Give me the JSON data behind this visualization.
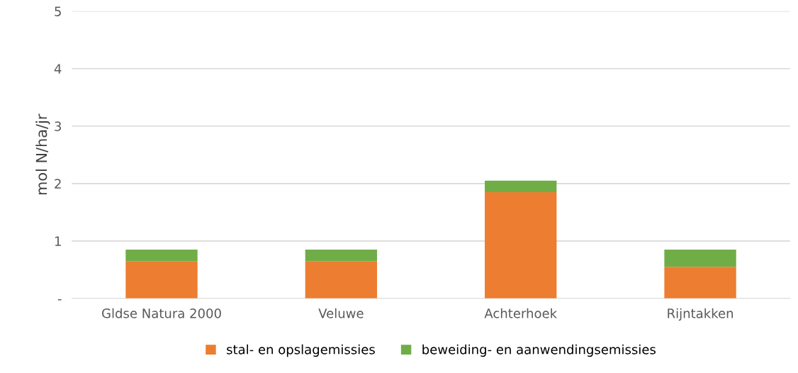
{
  "chart_data": {
    "type": "bar",
    "stacked": true,
    "ylabel": "mol N/ha/jr",
    "categories": [
      "Gldse Natura 2000",
      "Veluwe",
      "Achterhoek",
      "Rijntakken"
    ],
    "series": [
      {
        "name": "stal- en opslagemissies",
        "color": "#ed7d31",
        "values": [
          0.65,
          0.65,
          1.85,
          0.55
        ]
      },
      {
        "name": "beweiding- en aanwendingsemissies",
        "color": "#70ad47",
        "values": [
          0.2,
          0.2,
          0.2,
          0.3
        ]
      }
    ],
    "ylim": [
      0,
      5
    ],
    "yticks": [
      {
        "value": 0,
        "label": "-"
      },
      1,
      2,
      3,
      4,
      5
    ],
    "grid": "y",
    "legend": "bottom"
  }
}
